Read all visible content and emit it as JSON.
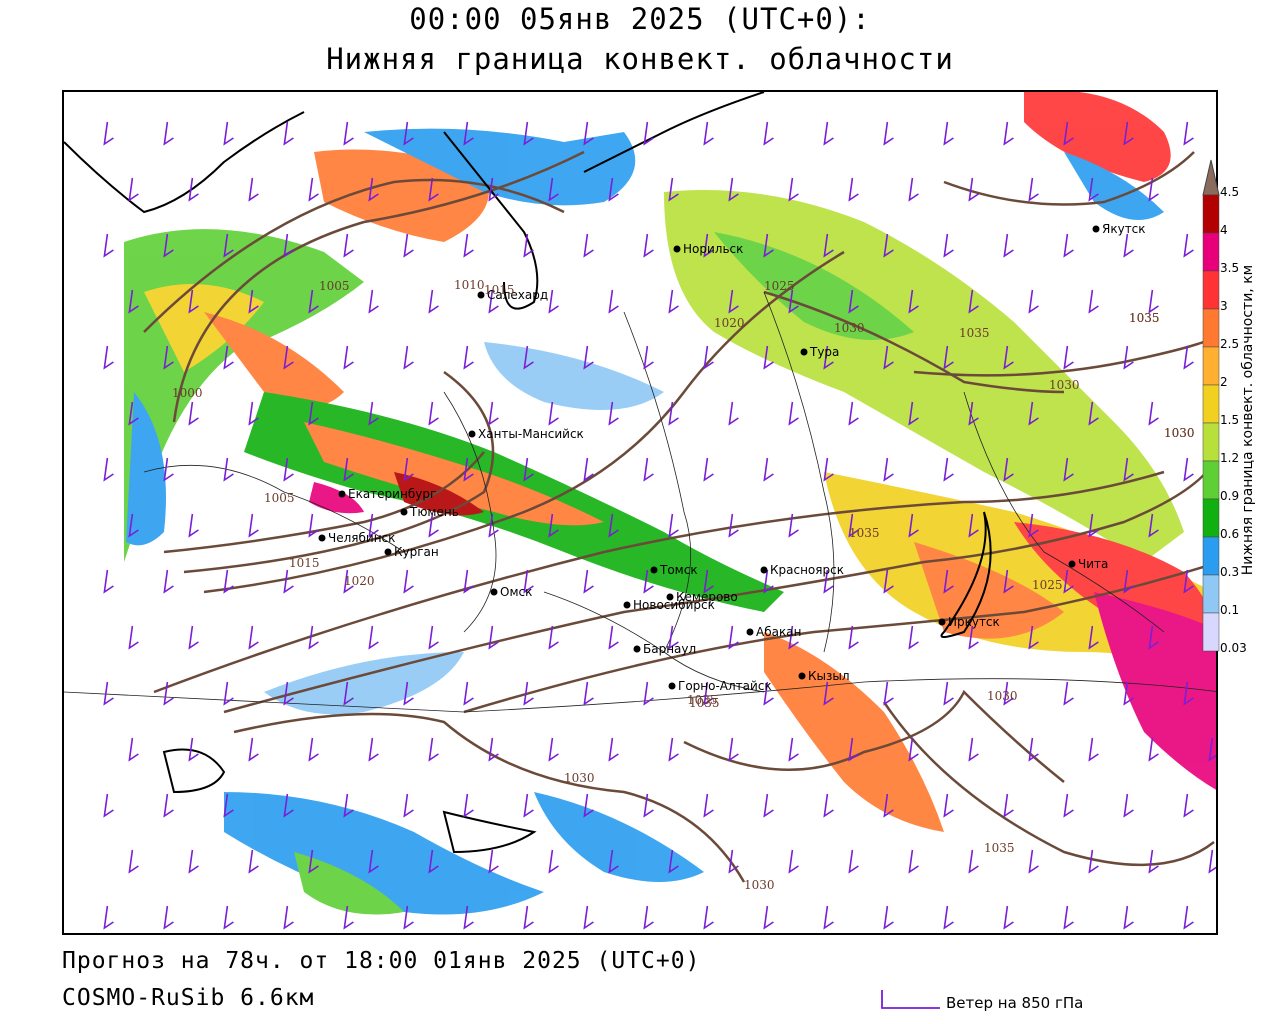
{
  "title": {
    "line1": "00:00 05янв 2025 (UTC+0):",
    "line2": "Нижняя граница конвект. облачности"
  },
  "footer": {
    "forecast": "Прогноз на 78ч. от 18:00 01янв 2025 (UTC+0)",
    "model": "COSMO-RuSib 6.6км",
    "wind_legend": "Ветер на 850 гПа"
  },
  "legend": {
    "title": "Нижняя граница конвект. облачности, км",
    "ticks": [
      "4.5",
      "4",
      "3.5",
      "3",
      "2.5",
      "2",
      "1.5",
      "1.2",
      "0.9",
      "0.6",
      "0.3",
      "0.1",
      "0.03"
    ],
    "colors": [
      "#8b6b5c",
      "#b30000",
      "#e8007a",
      "#ff3333",
      "#ff7a30",
      "#ffb030",
      "#f2d020",
      "#b8e03a",
      "#5ecf35",
      "#10b010",
      "#2a9df0",
      "#8fc8f5",
      "#d8d8ff"
    ]
  },
  "cities": [
    {
      "name": "Норильск"
    },
    {
      "name": "Якутск"
    },
    {
      "name": "Салехард"
    },
    {
      "name": "Тура"
    },
    {
      "name": "Ханты-Мансийск"
    },
    {
      "name": "Екатеринбург"
    },
    {
      "name": "Тюмень"
    },
    {
      "name": "Челябинск"
    },
    {
      "name": "Курган"
    },
    {
      "name": "Омск"
    },
    {
      "name": "Томск"
    },
    {
      "name": "Красноярск"
    },
    {
      "name": "Новосибирск"
    },
    {
      "name": "Кемерово"
    },
    {
      "name": "Абакан"
    },
    {
      "name": "Иркутск"
    },
    {
      "name": "Чита"
    },
    {
      "name": "Барнаул"
    },
    {
      "name": "Горно-Алтайск"
    },
    {
      "name": "Кызыл"
    }
  ],
  "isobar_labels": [
    "1005",
    "1010",
    "1015",
    "1025",
    "1020",
    "1030",
    "1035",
    "1000",
    "1005",
    "1015",
    "1020",
    "1035",
    "1030",
    "1025",
    "1035",
    "1030",
    "1035",
    "1025",
    "1030",
    "1030",
    "1035",
    "1035",
    "1030",
    "1030",
    "1035"
  ]
}
